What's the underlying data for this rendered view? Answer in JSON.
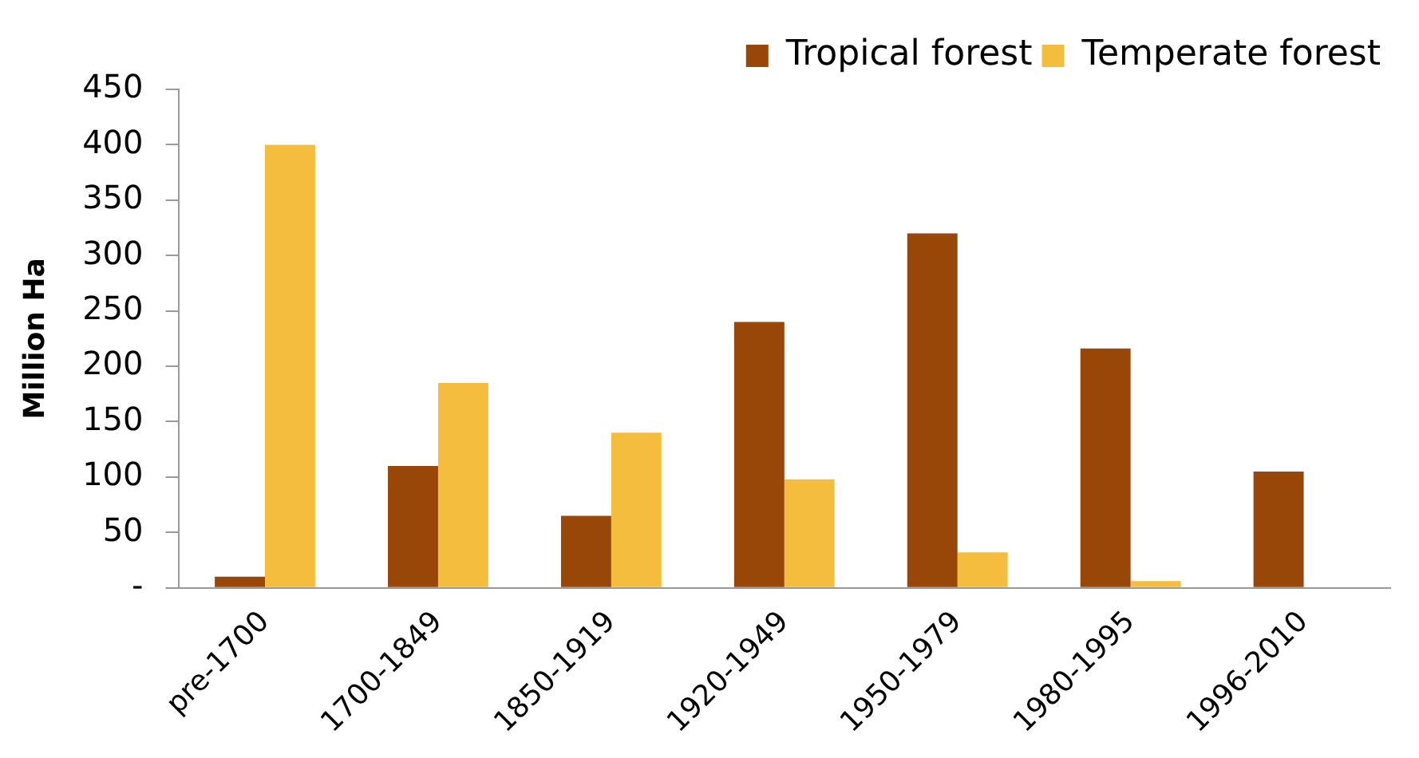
{
  "chart_data": {
    "type": "bar",
    "ylabel": "Million Ha",
    "categories": [
      "pre-1700",
      "1700-1849",
      "1850-1919",
      "1920-1949",
      "1950-1979",
      "1980-1995",
      "1996-2010"
    ],
    "series": [
      {
        "name": "Tropical forest",
        "color": "#994709",
        "values": [
          10,
          110,
          65,
          240,
          320,
          216,
          105
        ]
      },
      {
        "name": "Temperate forest",
        "color": "#f5bd3d",
        "values": [
          400,
          185,
          140,
          98,
          32,
          6,
          null
        ]
      }
    ],
    "ylim": [
      0,
      450
    ],
    "yticks": [
      {
        "value": 0,
        "label": "-"
      },
      50,
      100,
      150,
      200,
      250,
      300,
      350,
      400,
      450
    ],
    "grid": false,
    "legend": "top right"
  }
}
